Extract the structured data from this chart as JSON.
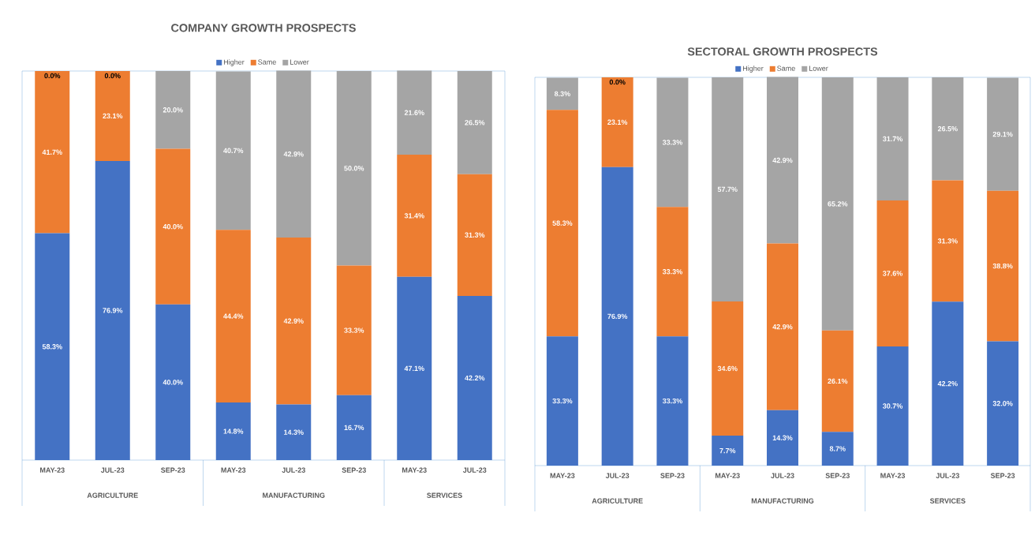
{
  "chart_data": [
    {
      "type": "bar",
      "stacked": true,
      "title": "COMPANY GROWTH PROSPECTS",
      "legend": "top",
      "tick_labels": "x",
      "ylim": [
        0,
        100
      ],
      "categories": [
        "MAY-23",
        "JUL-23",
        "SEP-23",
        "MAY-23",
        "JUL-23",
        "SEP-23",
        "MAY-23",
        "JUL-23"
      ],
      "annotations": [
        "AGRICULTURE",
        "MANUFACTURING",
        "SERVICES"
      ],
      "series": [
        {
          "name": "Higher",
          "color": "#4472c4",
          "values": [
            58.3,
            76.9,
            40.0,
            14.8,
            14.3,
            16.7,
            47.1,
            42.2
          ],
          "value_labels": [
            "58.3%",
            "76.9%",
            "40.0%",
            "14.8%",
            "14.3%",
            "16.7%",
            "47.1%",
            "42.2%"
          ]
        },
        {
          "name": "Same",
          "color": "#ed7d31",
          "values": [
            41.7,
            23.1,
            40.0,
            44.4,
            42.9,
            33.3,
            31.4,
            31.3
          ],
          "value_labels": [
            "41.7%",
            "23.1%",
            "40.0%",
            "44.4%",
            "42.9%",
            "33.3%",
            "31.4%",
            "31.3%"
          ]
        },
        {
          "name": "Lower",
          "color": "#a5a5a5",
          "values": [
            0.0,
            0.0,
            20.0,
            40.7,
            42.9,
            50.0,
            21.6,
            26.5
          ],
          "value_labels": [
            "0.0%",
            "0.0%",
            "20.0%",
            "40.7%",
            "42.9%",
            "50.0%",
            "21.6%",
            "26.5%"
          ]
        }
      ]
    },
    {
      "type": "bar",
      "stacked": true,
      "title": "SECTORAL GROWTH PROSPECTS",
      "legend": "top",
      "tick_labels": "x",
      "ylim": [
        0,
        100
      ],
      "categories": [
        "MAY-23",
        "JUL-23",
        "SEP-23",
        "MAY-23",
        "JUL-23",
        "SEP-23",
        "MAY-23",
        "JUL-23",
        "SEP-23"
      ],
      "annotations": [
        "AGRICULTURE",
        "MANUFACTURING",
        "SERVICES"
      ],
      "series": [
        {
          "name": "Higher",
          "color": "#4472c4",
          "values": [
            33.3,
            76.9,
            33.3,
            7.7,
            14.3,
            8.7,
            30.7,
            42.2,
            32.0
          ],
          "value_labels": [
            "33.3%",
            "76.9%",
            "33.3%",
            "7.7%",
            "14.3%",
            "8.7%",
            "30.7%",
            "42.2%",
            "32.0%"
          ]
        },
        {
          "name": "Same",
          "color": "#ed7d31",
          "values": [
            58.3,
            23.1,
            33.3,
            34.6,
            42.9,
            26.1,
            37.6,
            31.3,
            38.8
          ],
          "value_labels": [
            "58.3%",
            "23.1%",
            "33.3%",
            "34.6%",
            "42.9%",
            "26.1%",
            "37.6%",
            "31.3%",
            "38.8%"
          ]
        },
        {
          "name": "Lower",
          "color": "#a5a5a5",
          "values": [
            8.3,
            0.0,
            33.3,
            57.7,
            42.9,
            65.2,
            31.7,
            26.5,
            29.1
          ],
          "value_labels": [
            "8.3%",
            "0.0%",
            "33.3%",
            "57.7%",
            "42.9%",
            "65.2%",
            "31.7%",
            "26.5%",
            "29.1%"
          ]
        }
      ]
    }
  ]
}
